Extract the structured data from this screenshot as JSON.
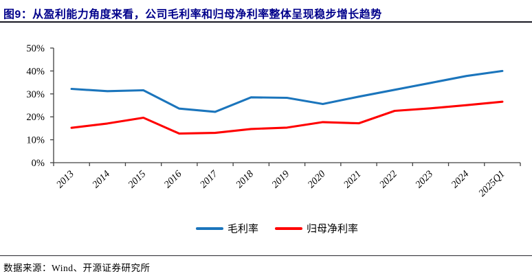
{
  "header": {
    "title": "图9：从盈利能力角度来看，公司毛利率和归母净利率整体呈现稳步增长趋势"
  },
  "footer": {
    "source": "数据来源：Wind、开源证券研究所"
  },
  "legend": {
    "items": [
      "毛利率",
      "归母净利率"
    ]
  },
  "colors": {
    "title_text": "#00008B",
    "axis": "#404040",
    "gross_margin_line": "#1B75BC",
    "net_margin_line": "#FF0000"
  },
  "chart_data": {
    "type": "line",
    "title": "",
    "xlabel": "",
    "ylabel": "",
    "categories": [
      "2013",
      "2014",
      "2015",
      "2016",
      "2017",
      "2018",
      "2019",
      "2020",
      "2021",
      "2022",
      "2023",
      "2024",
      "2025Q1"
    ],
    "series": [
      {
        "name": "毛利率",
        "color": "#1B75BC",
        "values": [
          32.2,
          31.2,
          31.6,
          23.6,
          22.2,
          28.5,
          28.3,
          25.6,
          28.8,
          31.8,
          34.8,
          37.8,
          40.0
        ]
      },
      {
        "name": "归母净利率",
        "color": "#FF0000",
        "values": [
          15.2,
          17.1,
          19.6,
          12.7,
          13.0,
          14.7,
          15.3,
          17.7,
          17.2,
          22.6,
          23.7,
          25.1,
          26.6
        ]
      }
    ],
    "ylim": [
      0,
      50
    ],
    "ytick_step": 10,
    "ytick_labels": [
      "0%",
      "10%",
      "20%",
      "30%",
      "40%",
      "50%"
    ],
    "grid": false,
    "legend_position": "bottom-center",
    "x_label_rotation_deg": -45
  }
}
